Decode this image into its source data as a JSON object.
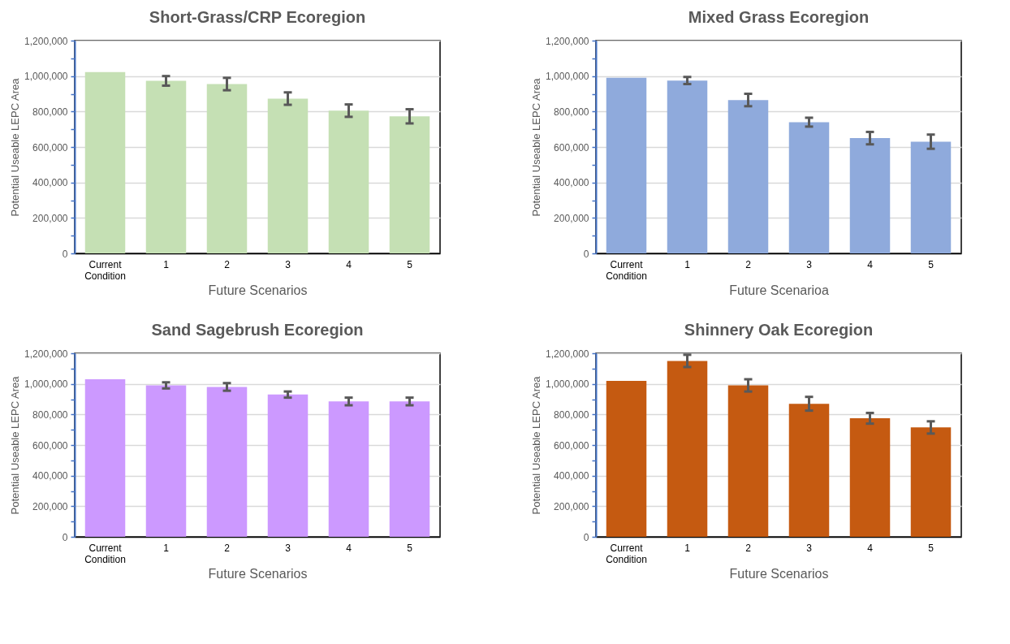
{
  "chart_data": [
    {
      "type": "bar",
      "title": "Short-Grass/CRP Ecoregion",
      "xlabel": "Future Scenarios",
      "ylabel": "Potential Useable LEPC Area",
      "categories": [
        "Current Condition",
        "1",
        "2",
        "3",
        "4",
        "5"
      ],
      "values": [
        1023000,
        973000,
        955000,
        873000,
        805000,
        773000
      ],
      "errors": [
        null,
        27000,
        35000,
        35000,
        35000,
        40000
      ],
      "color": "#c5e0b4",
      "ylim": [
        0,
        1200000
      ],
      "yticks": [
        {
          "value": 0,
          "label": "0"
        },
        {
          "value": 100000,
          "label": null
        },
        {
          "value": 200000,
          "label": "200,000"
        },
        {
          "value": 300000,
          "label": null
        },
        {
          "value": 400000,
          "label": "400,000"
        },
        {
          "value": 500000,
          "label": null
        },
        {
          "value": 600000,
          "label": "600,000"
        },
        {
          "value": 700000,
          "label": null
        },
        {
          "value": 800000,
          "label": "800,000"
        },
        {
          "value": 900000,
          "label": null
        },
        {
          "value": 1000000,
          "label": "1,000,000"
        },
        {
          "value": 1100000,
          "label": null
        },
        {
          "value": 1200000,
          "label": "1,200,000"
        }
      ],
      "grid": "y"
    },
    {
      "type": "bar",
      "title": "Mixed Grass Ecoregion",
      "xlabel": "Future Scenarioa",
      "ylabel": "Potential Useable LEPC Area",
      "categories": [
        "Current Condition",
        "1",
        "2",
        "3",
        "4",
        "5"
      ],
      "values": [
        990000,
        975000,
        865000,
        740000,
        650000,
        630000
      ],
      "errors": [
        null,
        20000,
        35000,
        25000,
        35000,
        40000
      ],
      "color": "#8faadc",
      "ylim": [
        0,
        1200000
      ],
      "yticks": [
        {
          "value": 0,
          "label": "0"
        },
        {
          "value": 100000,
          "label": null
        },
        {
          "value": 200000,
          "label": "200,000"
        },
        {
          "value": 300000,
          "label": null
        },
        {
          "value": 400000,
          "label": "400,000"
        },
        {
          "value": 500000,
          "label": null
        },
        {
          "value": 600000,
          "label": "600,000"
        },
        {
          "value": 700000,
          "label": null
        },
        {
          "value": 800000,
          "label": "800,000"
        },
        {
          "value": 900000,
          "label": null
        },
        {
          "value": 1000000,
          "label": "1,000,000"
        },
        {
          "value": 1100000,
          "label": null
        },
        {
          "value": 1200000,
          "label": "1,200,000"
        }
      ],
      "grid": "y"
    },
    {
      "type": "bar",
      "title": "Sand Sagebrush Ecoregion",
      "xlabel": "Future Scenarios",
      "ylabel": "Potential Useable LEPC Area",
      "categories": [
        "Current Condition",
        "1",
        "2",
        "3",
        "4",
        "5"
      ],
      "values": [
        1030000,
        990000,
        980000,
        930000,
        885000,
        885000
      ],
      "errors": [
        null,
        20000,
        25000,
        20000,
        25000,
        25000
      ],
      "color": "#cc99ff",
      "ylim": [
        0,
        1200000
      ],
      "yticks": [
        {
          "value": 0,
          "label": "0"
        },
        {
          "value": 100000,
          "label": null
        },
        {
          "value": 200000,
          "label": "200,000"
        },
        {
          "value": 300000,
          "label": null
        },
        {
          "value": 400000,
          "label": "400,000"
        },
        {
          "value": 500000,
          "label": null
        },
        {
          "value": 600000,
          "label": "600,000"
        },
        {
          "value": 700000,
          "label": null
        },
        {
          "value": 800000,
          "label": "800,000"
        },
        {
          "value": 900000,
          "label": null
        },
        {
          "value": 1000000,
          "label": "1,000,000"
        },
        {
          "value": 1100000,
          "label": null
        },
        {
          "value": 1200000,
          "label": "1,200,000"
        }
      ],
      "grid": "y"
    },
    {
      "type": "bar",
      "title": "Shinnery Oak Ecoregion",
      "xlabel": "Future Scenarios",
      "ylabel": "Potential Useable LEPC Area",
      "categories": [
        "Current Condition",
        "1",
        "2",
        "3",
        "4",
        "5"
      ],
      "values": [
        1020000,
        1150000,
        990000,
        870000,
        775000,
        715000
      ],
      "errors": [
        null,
        40000,
        40000,
        45000,
        35000,
        40000
      ],
      "color": "#c55a11",
      "ylim": [
        0,
        1200000
      ],
      "yticks": [
        {
          "value": 0,
          "label": "0"
        },
        {
          "value": 100000,
          "label": null
        },
        {
          "value": 200000,
          "label": "200,000"
        },
        {
          "value": 300000,
          "label": null
        },
        {
          "value": 400000,
          "label": "400,000"
        },
        {
          "value": 500000,
          "label": null
        },
        {
          "value": 600000,
          "label": "600,000"
        },
        {
          "value": 700000,
          "label": null
        },
        {
          "value": 800000,
          "label": "800,000"
        },
        {
          "value": 900000,
          "label": null
        },
        {
          "value": 1000000,
          "label": "1,000,000"
        },
        {
          "value": 1100000,
          "label": null
        },
        {
          "value": 1200000,
          "label": "1,200,000"
        }
      ],
      "grid": "y"
    }
  ]
}
